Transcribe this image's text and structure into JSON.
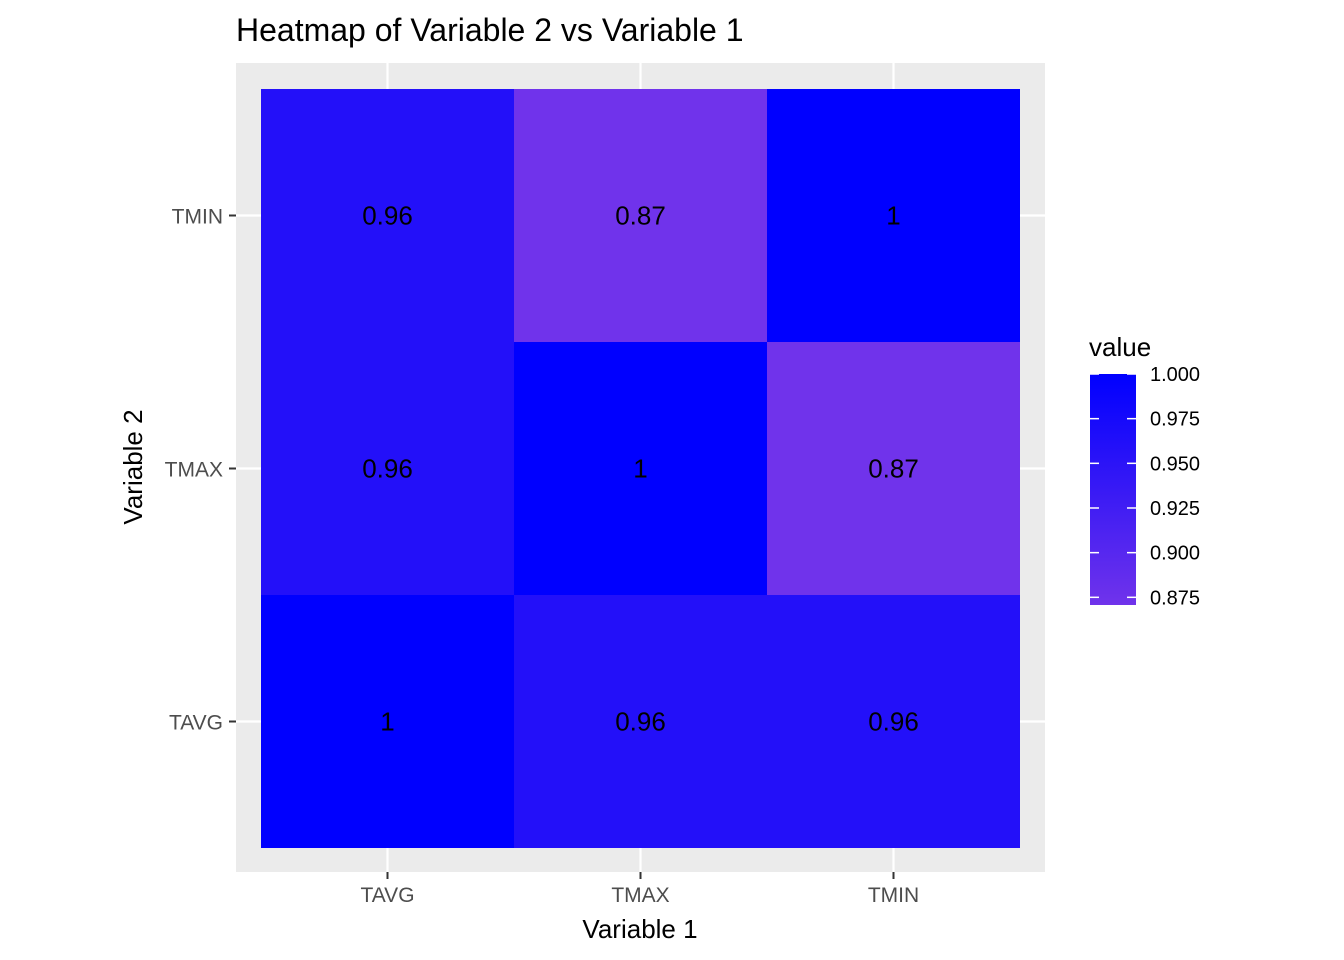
{
  "chart_data": {
    "type": "heatmap",
    "title": "Heatmap of Variable 2 vs Variable 1",
    "xlabel": "Variable 1",
    "ylabel": "Variable 2",
    "x_categories": [
      "TAVG",
      "TMAX",
      "TMIN"
    ],
    "y_categories": [
      "TAVG",
      "TMAX",
      "TMIN"
    ],
    "cells": [
      {
        "x": "TAVG",
        "y": "TAVG",
        "value": 1.0,
        "label": "1"
      },
      {
        "x": "TMAX",
        "y": "TAVG",
        "value": 0.96,
        "label": "0.96"
      },
      {
        "x": "TMIN",
        "y": "TAVG",
        "value": 0.96,
        "label": "0.96"
      },
      {
        "x": "TAVG",
        "y": "TMAX",
        "value": 0.96,
        "label": "0.96"
      },
      {
        "x": "TMAX",
        "y": "TMAX",
        "value": 1.0,
        "label": "1"
      },
      {
        "x": "TMIN",
        "y": "TMAX",
        "value": 0.87,
        "label": "0.87"
      },
      {
        "x": "TAVG",
        "y": "TMIN",
        "value": 0.96,
        "label": "0.96"
      },
      {
        "x": "TMAX",
        "y": "TMIN",
        "value": 0.87,
        "label": "0.87"
      },
      {
        "x": "TMIN",
        "y": "TMIN",
        "value": 1.0,
        "label": "1"
      }
    ],
    "legend": {
      "title": "value",
      "position": "right",
      "ticks": [
        1.0,
        0.975,
        0.95,
        0.925,
        0.9,
        0.875
      ],
      "tick_labels": [
        "1.000",
        "0.975",
        "0.950",
        "0.925",
        "0.900",
        "0.875"
      ],
      "range": [
        0.8707,
        1.0
      ]
    },
    "color_scale": {
      "low_value": 0.8707,
      "high_value": 1.0,
      "low_color": "#7033eb",
      "high_color": "#0000ff"
    },
    "grid": true,
    "panel_background": "#ebebeb",
    "grid_color": "#ffffff"
  }
}
